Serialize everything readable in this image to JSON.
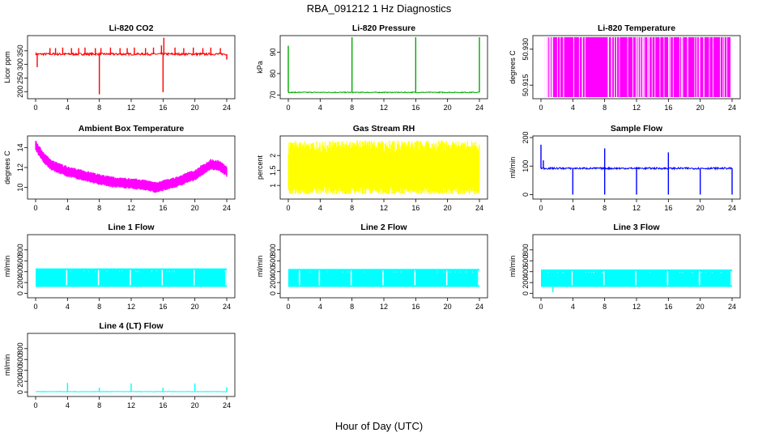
{
  "figure": {
    "title": "RBA_091212  1 Hz Diagnostics",
    "xlabel": "Hour of Day (UTC)"
  },
  "chart_data": [
    {
      "type": "line",
      "title": "Li-820 CO2",
      "ylabel": "Licor ppm",
      "color": "#ff0000",
      "xlim": [
        0,
        24
      ],
      "ylim": [
        180,
        400
      ],
      "xticks": [
        0,
        4,
        8,
        12,
        16,
        20,
        24
      ],
      "yticks": [
        200,
        250,
        300,
        350
      ],
      "series": [
        {
          "pattern": "baseline-spikes",
          "base": 338,
          "noise": 4,
          "spikes": [
            {
              "x": 0.2,
              "y": 290
            },
            {
              "x": 1.8,
              "y": 360
            },
            {
              "x": 2.5,
              "y": 360
            },
            {
              "x": 3.4,
              "y": 362
            },
            {
              "x": 4.5,
              "y": 360
            },
            {
              "x": 5.4,
              "y": 360
            },
            {
              "x": 6.2,
              "y": 362
            },
            {
              "x": 7.5,
              "y": 360
            },
            {
              "x": 8.0,
              "y": 190
            },
            {
              "x": 8.2,
              "y": 360
            },
            {
              "x": 9.4,
              "y": 362
            },
            {
              "x": 10.6,
              "y": 360
            },
            {
              "x": 11.5,
              "y": 360
            },
            {
              "x": 12.4,
              "y": 362
            },
            {
              "x": 13.8,
              "y": 360
            },
            {
              "x": 14.8,
              "y": 362
            },
            {
              "x": 15.8,
              "y": 370
            },
            {
              "x": 16.0,
              "y": 198
            },
            {
              "x": 16.1,
              "y": 398
            },
            {
              "x": 17.5,
              "y": 362
            },
            {
              "x": 18.6,
              "y": 360
            },
            {
              "x": 19.8,
              "y": 362
            },
            {
              "x": 21.0,
              "y": 360
            },
            {
              "x": 22.0,
              "y": 362
            },
            {
              "x": 23.2,
              "y": 360
            },
            {
              "x": 24.0,
              "y": 318
            }
          ]
        }
      ]
    },
    {
      "type": "line",
      "title": "Li-820 Pressure",
      "ylabel": "kPa",
      "color": "#00aa00",
      "xlim": [
        0,
        24
      ],
      "ylim": [
        69,
        97
      ],
      "xticks": [
        0,
        4,
        8,
        12,
        16,
        20,
        24
      ],
      "yticks": [
        70,
        80,
        90
      ],
      "series": [
        {
          "pattern": "baseline-spikes",
          "base": 71.2,
          "noise": 0.2,
          "spikes": [
            {
              "x": 0.0,
              "y": 93
            },
            {
              "x": 8.0,
              "y": 97
            },
            {
              "x": 16.0,
              "y": 97
            },
            {
              "x": 24.0,
              "y": 97
            }
          ]
        }
      ]
    },
    {
      "type": "line",
      "title": "Li-820 Temperature",
      "ylabel": "degrees C",
      "color": "#ff00ff",
      "xlim": [
        0,
        24
      ],
      "ylim": [
        50.91,
        50.935
      ],
      "xticks": [
        0,
        4,
        8,
        12,
        16,
        20,
        24
      ],
      "yticks": [
        50.915,
        50.93
      ],
      "series": [
        {
          "pattern": "toggle",
          "low": 50.91,
          "high": 50.935,
          "start": 0.5,
          "end": 23.8
        }
      ]
    },
    {
      "type": "line",
      "title": "Ambient Box Temperature",
      "ylabel": "degrees C",
      "color": "#ff00ff",
      "xlim": [
        0,
        24
      ],
      "ylim": [
        9,
        15
      ],
      "xticks": [
        0,
        4,
        8,
        12,
        16,
        20,
        24
      ],
      "yticks": [
        10,
        12,
        14
      ],
      "series": [
        {
          "pattern": "band",
          "center": [
            [
              0,
              14.2
            ],
            [
              1,
              13.0
            ],
            [
              2,
              12.2
            ],
            [
              4,
              11.6
            ],
            [
              6,
              11.2
            ],
            [
              8,
              10.8
            ],
            [
              10,
              10.5
            ],
            [
              12,
              10.4
            ],
            [
              14,
              10.2
            ],
            [
              15,
              10.0
            ],
            [
              16,
              10.2
            ],
            [
              18,
              10.6
            ],
            [
              19,
              11.0
            ],
            [
              20,
              11.2
            ],
            [
              21,
              11.8
            ],
            [
              22,
              12.3
            ],
            [
              23,
              12.2
            ],
            [
              24,
              11.6
            ]
          ],
          "halfwidth": 0.5
        }
      ]
    },
    {
      "type": "line",
      "title": "Gas Stream RH",
      "ylabel": "percent",
      "color": "#ffff00",
      "xlim": [
        0,
        24
      ],
      "ylim": [
        0.6,
        2.6
      ],
      "xticks": [
        0,
        4,
        8,
        12,
        16,
        20,
        24
      ],
      "yticks": [
        1.0,
        1.5,
        2.0
      ],
      "series": [
        {
          "pattern": "noise-band",
          "low": 0.7,
          "high": 2.5
        }
      ]
    },
    {
      "type": "line",
      "title": "Sample Flow",
      "ylabel": "ml/min",
      "color": "#0000ff",
      "xlim": [
        0,
        24
      ],
      "ylim": [
        -10,
        200
      ],
      "xticks": [
        0,
        4,
        8,
        12,
        16,
        20,
        24
      ],
      "yticks": [
        0,
        100,
        200
      ],
      "series": [
        {
          "pattern": "baseline-spikes",
          "base": 92,
          "noise": 3,
          "spikes": [
            {
              "x": 0.0,
              "y": 175
            },
            {
              "x": 0.3,
              "y": 120
            },
            {
              "x": 4.0,
              "y": 0
            },
            {
              "x": 8.0,
              "y": 0
            },
            {
              "x": 8.0,
              "y": 162
            },
            {
              "x": 12.0,
              "y": 0
            },
            {
              "x": 16.0,
              "y": 0
            },
            {
              "x": 16.0,
              "y": 148
            },
            {
              "x": 20.0,
              "y": 0
            },
            {
              "x": 24.0,
              "y": 0
            }
          ]
        }
      ]
    },
    {
      "type": "line",
      "title": "Line 1 Flow",
      "ylabel": "ml/min",
      "color": "#00ffff",
      "xlim": [
        0,
        24
      ],
      "ylim": [
        -50,
        1050
      ],
      "xticks": [
        0,
        4,
        8,
        12,
        16,
        20,
        24
      ],
      "yticks": [
        0,
        200,
        400,
        600,
        800
      ],
      "series": [
        {
          "pattern": "block",
          "low": 120,
          "high": 460,
          "gaps": [
            4,
            8,
            12,
            16,
            20,
            24
          ]
        }
      ]
    },
    {
      "type": "line",
      "title": "Line 2 Flow",
      "ylabel": "ml/min",
      "color": "#00ffff",
      "xlim": [
        0,
        24
      ],
      "ylim": [
        -50,
        1050
      ],
      "xticks": [
        0,
        4,
        8,
        12,
        16,
        20,
        24
      ],
      "yticks": [
        0,
        200,
        400,
        600,
        800
      ],
      "series": [
        {
          "pattern": "block",
          "low": 120,
          "high": 450,
          "gaps": [
            1.5,
            4,
            8,
            12,
            16,
            20,
            24
          ]
        }
      ]
    },
    {
      "type": "line",
      "title": "Line 3 Flow",
      "ylabel": "ml/min",
      "color": "#00ffff",
      "xlim": [
        0,
        24
      ],
      "ylim": [
        -50,
        1050
      ],
      "xticks": [
        0,
        4,
        8,
        12,
        16,
        20,
        24
      ],
      "yticks": [
        0,
        200,
        400,
        600,
        800
      ],
      "series": [
        {
          "pattern": "block",
          "low": 120,
          "high": 440,
          "gaps": [
            4,
            8,
            12,
            16,
            20,
            24
          ],
          "dip": {
            "x": 1.5,
            "y": 20
          }
        }
      ]
    },
    {
      "type": "line",
      "title": "Line 4 (LT) Flow",
      "ylabel": "ml/min",
      "color": "#00ffff",
      "xlim": [
        0,
        24
      ],
      "ylim": [
        -50,
        1050
      ],
      "xticks": [
        0,
        4,
        8,
        12,
        16,
        20,
        24
      ],
      "yticks": [
        0,
        200,
        400,
        600,
        800
      ],
      "series": [
        {
          "pattern": "baseline-spikes",
          "base": 10,
          "noise": 4,
          "spikes": [
            {
              "x": 4.0,
              "y": 170
            },
            {
              "x": 8.0,
              "y": 80
            },
            {
              "x": 12.0,
              "y": 160
            },
            {
              "x": 16.0,
              "y": 80
            },
            {
              "x": 20.0,
              "y": 160
            },
            {
              "x": 24.0,
              "y": 90
            }
          ]
        }
      ]
    }
  ]
}
